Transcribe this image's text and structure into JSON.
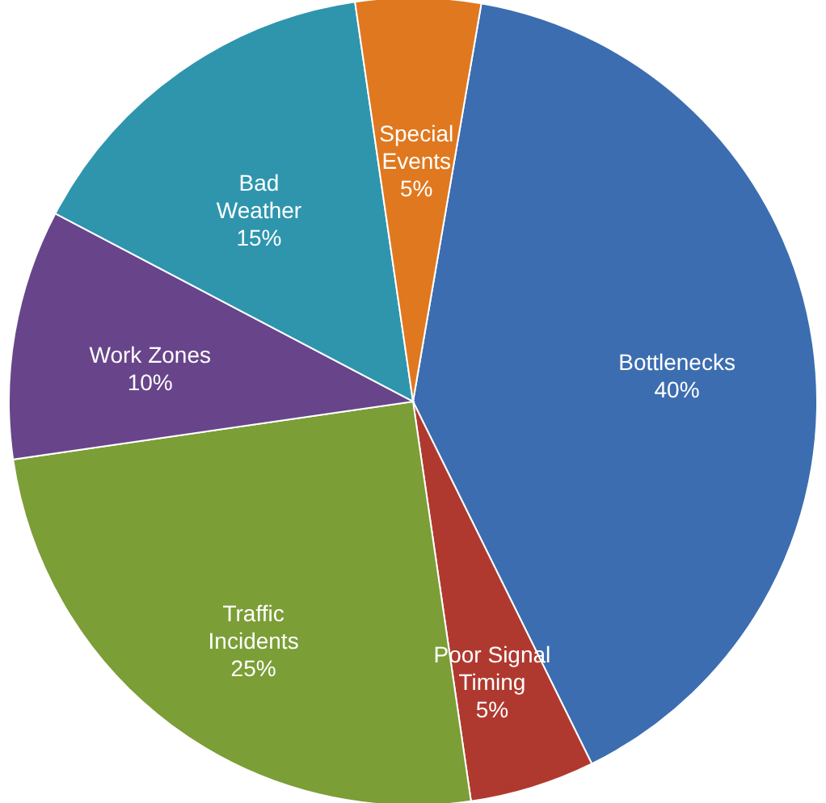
{
  "chart_data": {
    "type": "pie",
    "categories": [
      "Bottlenecks",
      "Poor Signal\nTiming",
      "Traffic\nIncidents",
      "Work Zones",
      "Bad\nWeather",
      "Special\nEvents"
    ],
    "values": [
      40,
      5,
      25,
      10,
      15,
      5
    ],
    "value_labels": [
      "40%",
      "5%",
      "25%",
      "10%",
      "15%",
      "5%"
    ],
    "colors": [
      "#3c6db0",
      "#b0392f",
      "#7b9e36",
      "#68458a",
      "#2e95ad",
      "#e0781f"
    ]
  }
}
